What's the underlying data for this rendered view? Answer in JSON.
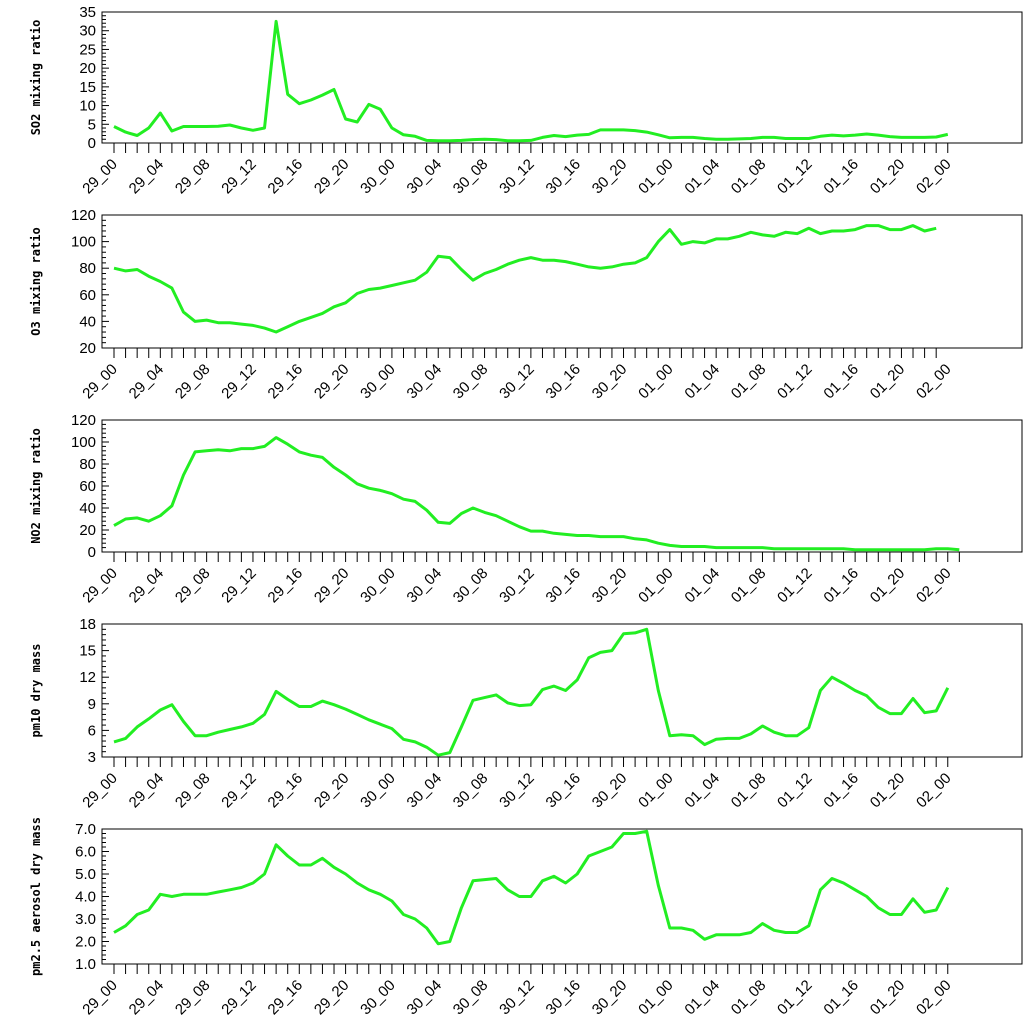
{
  "chart_data": [
    {
      "type": "line",
      "ylabel": "SO2 mixing ratio",
      "ylim": [
        0,
        35
      ],
      "yticks": [
        0,
        5,
        10,
        15,
        20,
        25,
        30,
        35
      ],
      "line_color": "#22ee22",
      "x_tick_labels": [
        "29_00",
        "29_04",
        "29_08",
        "29_12",
        "29_16",
        "29_20",
        "30_00",
        "30_04",
        "30_08",
        "30_12",
        "30_16",
        "30_20",
        "01_00",
        "01_04",
        "01_08",
        "01_12",
        "01_16",
        "01_20",
        "02_00"
      ],
      "series": [
        {
          "values": [
            4.4,
            2.9,
            2.0,
            4.0,
            8.0,
            3.2,
            4.4,
            4.4,
            4.4,
            4.5,
            4.8,
            4.0,
            3.4,
            4.0,
            32.5,
            13.0,
            10.5,
            11.5,
            12.8,
            14.3,
            6.4,
            5.6,
            10.3,
            9.0,
            4.0,
            2.2,
            1.8,
            0.7,
            0.6,
            0.6,
            0.7,
            0.9,
            1.0,
            0.9,
            0.6,
            0.6,
            0.7,
            1.5,
            2.0,
            1.7,
            2.1,
            2.3,
            3.5,
            3.5,
            3.5,
            3.3,
            2.9,
            2.2,
            1.4,
            1.5,
            1.5,
            1.2,
            1.0,
            1.0,
            1.1,
            1.2,
            1.5,
            1.5,
            1.2,
            1.2,
            1.2,
            1.8,
            2.1,
            1.9,
            2.1,
            2.4,
            2.1,
            1.7,
            1.5,
            1.5,
            1.5,
            1.6,
            2.3
          ]
        }
      ]
    },
    {
      "type": "line",
      "ylabel": "O3 mixing ratio",
      "ylim": [
        20,
        120
      ],
      "yticks": [
        20,
        40,
        60,
        80,
        100,
        120
      ],
      "line_color": "#22ee22",
      "x_tick_labels": [
        "29_00",
        "29_04",
        "29_08",
        "29_12",
        "29_16",
        "29_20",
        "30_00",
        "30_04",
        "30_08",
        "30_12",
        "30_16",
        "30_20",
        "01_00",
        "01_04",
        "01_08",
        "01_12",
        "01_16",
        "01_20",
        "02_00"
      ],
      "series": [
        {
          "values": [
            80,
            78,
            79,
            74,
            70,
            65,
            47,
            40,
            41,
            39,
            39,
            38,
            37,
            35,
            32,
            36,
            40,
            43,
            46,
            51,
            54,
            61,
            64,
            65,
            67,
            69,
            71,
            77,
            89,
            88,
            79,
            71,
            76,
            79,
            83,
            86,
            88,
            86,
            86,
            85,
            83,
            81,
            80,
            81,
            83,
            84,
            88,
            100,
            109,
            98,
            100,
            99,
            102,
            102,
            104,
            107,
            105,
            104,
            107,
            106,
            110,
            106,
            108,
            108,
            109,
            112,
            112,
            109,
            109,
            112,
            108,
            110
          ]
        }
      ]
    },
    {
      "type": "line",
      "ylabel": "NO2 mixing ratio",
      "ylim": [
        0,
        120
      ],
      "yticks": [
        0,
        20,
        40,
        60,
        80,
        100,
        120
      ],
      "line_color": "#22ee22",
      "x_tick_labels": [
        "29_00",
        "29_04",
        "29_08",
        "29_12",
        "29_16",
        "29_20",
        "30_00",
        "30_04",
        "30_08",
        "30_12",
        "30_16",
        "30_20",
        "01_00",
        "01_04",
        "01_08",
        "01_12",
        "01_16",
        "01_20",
        "02_00"
      ],
      "series": [
        {
          "values": [
            24,
            30,
            31,
            28,
            33,
            42,
            70,
            91,
            92,
            93,
            92,
            94,
            94,
            96,
            104,
            98,
            91,
            88,
            86,
            77,
            70,
            62,
            58,
            56,
            53,
            48,
            46,
            38,
            27,
            26,
            35,
            40,
            36,
            33,
            28,
            23,
            19,
            19,
            17,
            16,
            15,
            15,
            14,
            14,
            14,
            12,
            11,
            8,
            6,
            5,
            5,
            5,
            4,
            4,
            4,
            4,
            4,
            3,
            3,
            3,
            3,
            3,
            3,
            3,
            2,
            2,
            2,
            2,
            2,
            2,
            2,
            3,
            3,
            2
          ]
        }
      ]
    },
    {
      "type": "line",
      "ylabel": "pm10 dry mass",
      "ylim": [
        3,
        18
      ],
      "yticks": [
        3,
        6,
        9,
        12,
        15,
        18
      ],
      "line_color": "#22ee22",
      "x_tick_labels": [
        "29_00",
        "29_04",
        "29_08",
        "29_12",
        "29_16",
        "29_20",
        "30_00",
        "30_04",
        "30_08",
        "30_12",
        "30_16",
        "30_20",
        "01_00",
        "01_04",
        "01_08",
        "01_12",
        "01_16",
        "01_20",
        "02_00"
      ],
      "series": [
        {
          "values": [
            4.7,
            5.1,
            6.4,
            7.3,
            8.3,
            8.9,
            7.0,
            5.4,
            5.4,
            5.8,
            6.1,
            6.4,
            6.8,
            7.8,
            10.4,
            9.5,
            8.7,
            8.7,
            9.3,
            8.9,
            8.4,
            7.8,
            7.2,
            6.7,
            6.2,
            5.0,
            4.7,
            4.1,
            3.2,
            3.5,
            6.4,
            9.4,
            9.7,
            10.0,
            9.1,
            8.8,
            8.9,
            10.6,
            11.0,
            10.5,
            11.7,
            14.2,
            14.8,
            15.0,
            16.9,
            17.0,
            17.4,
            10.5,
            5.4,
            5.5,
            5.4,
            4.4,
            5.0,
            5.1,
            5.1,
            5.6,
            6.5,
            5.8,
            5.4,
            5.4,
            6.3,
            10.5,
            12.0,
            11.3,
            10.5,
            9.9,
            8.6,
            7.9,
            7.9,
            9.6,
            8.0,
            8.2,
            10.8
          ]
        }
      ]
    },
    {
      "type": "line",
      "ylabel": "pm2.5 aerosol dry mass",
      "ylim": [
        1.0,
        7.0
      ],
      "yticks": [
        1.0,
        2.0,
        3.0,
        4.0,
        5.0,
        6.0,
        7.0
      ],
      "ytick_labels": [
        "1.0",
        "2.0",
        "3.0",
        "4.0",
        "5.0",
        "6.0",
        "7.0"
      ],
      "line_color": "#22ee22",
      "x_tick_labels": [
        "29_00",
        "29_04",
        "29_08",
        "29_12",
        "29_16",
        "29_20",
        "30_00",
        "30_04",
        "30_08",
        "30_12",
        "30_16",
        "30_20",
        "01_00",
        "01_04",
        "01_08",
        "01_12",
        "01_16",
        "01_20",
        "02_00"
      ],
      "series": [
        {
          "values": [
            2.4,
            2.7,
            3.2,
            3.4,
            4.1,
            4.0,
            4.1,
            4.1,
            4.1,
            4.2,
            4.3,
            4.4,
            4.6,
            5.0,
            6.3,
            5.8,
            5.4,
            5.4,
            5.7,
            5.3,
            5.0,
            4.6,
            4.3,
            4.1,
            3.8,
            3.2,
            3.0,
            2.6,
            1.9,
            2.0,
            3.5,
            4.7,
            4.75,
            4.8,
            4.3,
            4.0,
            4.0,
            4.7,
            4.9,
            4.6,
            5.0,
            5.8,
            6.0,
            6.2,
            6.8,
            6.8,
            6.9,
            4.5,
            2.6,
            2.6,
            2.5,
            2.1,
            2.3,
            2.3,
            2.3,
            2.4,
            2.8,
            2.5,
            2.4,
            2.4,
            2.7,
            4.3,
            4.8,
            4.6,
            4.3,
            4.0,
            3.5,
            3.2,
            3.2,
            3.9,
            3.3,
            3.4,
            4.4
          ]
        }
      ]
    }
  ]
}
